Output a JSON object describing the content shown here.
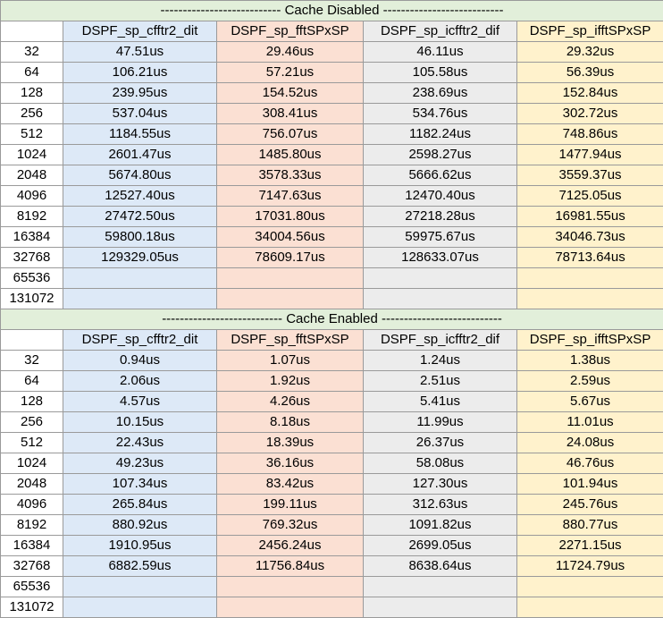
{
  "sections": [
    {
      "title": "--------------------------- Cache Disabled ---------------------------",
      "headers": [
        "DSPF_sp_cfftr2_dit",
        "DSPF_sp_fftSPxSP",
        "DSPF_sp_icfftr2_dif",
        "DSPF_sp_ifftSPxSP"
      ],
      "rows": [
        {
          "size": "32",
          "values": [
            "47.51us",
            "29.46us",
            "46.11us",
            "29.32us"
          ]
        },
        {
          "size": "64",
          "values": [
            "106.21us",
            "57.21us",
            "105.58us",
            "56.39us"
          ]
        },
        {
          "size": "128",
          "values": [
            "239.95us",
            "154.52us",
            "238.69us",
            "152.84us"
          ]
        },
        {
          "size": "256",
          "values": [
            "537.04us",
            "308.41us",
            "534.76us",
            "302.72us"
          ]
        },
        {
          "size": "512",
          "values": [
            "1184.55us",
            "756.07us",
            "1182.24us",
            "748.86us"
          ]
        },
        {
          "size": "1024",
          "values": [
            "2601.47us",
            "1485.80us",
            "2598.27us",
            "1477.94us"
          ]
        },
        {
          "size": "2048",
          "values": [
            "5674.80us",
            "3578.33us",
            "5666.62us",
            "3559.37us"
          ]
        },
        {
          "size": "4096",
          "values": [
            "12527.40us",
            "7147.63us",
            "12470.40us",
            "7125.05us"
          ]
        },
        {
          "size": "8192",
          "values": [
            "27472.50us",
            "17031.80us",
            "27218.28us",
            "16981.55us"
          ]
        },
        {
          "size": "16384",
          "values": [
            "59800.18us",
            "34004.56us",
            "59975.67us",
            "34046.73us"
          ]
        },
        {
          "size": "32768",
          "values": [
            "129329.05us",
            "78609.17us",
            "128633.07us",
            "78713.64us"
          ]
        },
        {
          "size": "65536",
          "values": [
            "",
            "",
            "",
            ""
          ]
        },
        {
          "size": "131072",
          "values": [
            "",
            "",
            "",
            ""
          ]
        }
      ]
    },
    {
      "title": "--------------------------- Cache Enabled ---------------------------",
      "headers": [
        "DSPF_sp_cfftr2_dit",
        "DSPF_sp_fftSPxSP",
        "DSPF_sp_icfftr2_dif",
        "DSPF_sp_ifftSPxSP"
      ],
      "rows": [
        {
          "size": "32",
          "values": [
            "0.94us",
            "1.07us",
            "1.24us",
            "1.38us"
          ]
        },
        {
          "size": "64",
          "values": [
            "2.06us",
            "1.92us",
            "2.51us",
            "2.59us"
          ]
        },
        {
          "size": "128",
          "values": [
            "4.57us",
            "4.26us",
            "5.41us",
            "5.67us"
          ]
        },
        {
          "size": "256",
          "values": [
            "10.15us",
            "8.18us",
            "11.99us",
            "11.01us"
          ]
        },
        {
          "size": "512",
          "values": [
            "22.43us",
            "18.39us",
            "26.37us",
            "24.08us"
          ]
        },
        {
          "size": "1024",
          "values": [
            "49.23us",
            "36.16us",
            "58.08us",
            "46.76us"
          ]
        },
        {
          "size": "2048",
          "values": [
            "107.34us",
            "83.42us",
            "127.30us",
            "101.94us"
          ]
        },
        {
          "size": "4096",
          "values": [
            "265.84us",
            "199.11us",
            "312.63us",
            "245.76us"
          ]
        },
        {
          "size": "8192",
          "values": [
            "880.92us",
            "769.32us",
            "1091.82us",
            "880.77us"
          ]
        },
        {
          "size": "16384",
          "values": [
            "1910.95us",
            "2456.24us",
            "2699.05us",
            "2271.15us"
          ]
        },
        {
          "size": "32768",
          "values": [
            "6882.59us",
            "11756.84us",
            "8638.64us",
            "11724.79us"
          ]
        },
        {
          "size": "65536",
          "values": [
            "",
            "",
            "",
            ""
          ]
        },
        {
          "size": "131072",
          "values": [
            "",
            "",
            "",
            ""
          ]
        }
      ]
    }
  ],
  "colors": {
    "section_bg": "#e2efda",
    "col_cfftr2_dit": "#dde9f7",
    "col_fftSPxSP": "#fbe0d3",
    "col_icfftr2_dif": "#ececec",
    "col_ifftSPxSP": "#fff2cc",
    "grid_line": "#9a9a9a"
  }
}
